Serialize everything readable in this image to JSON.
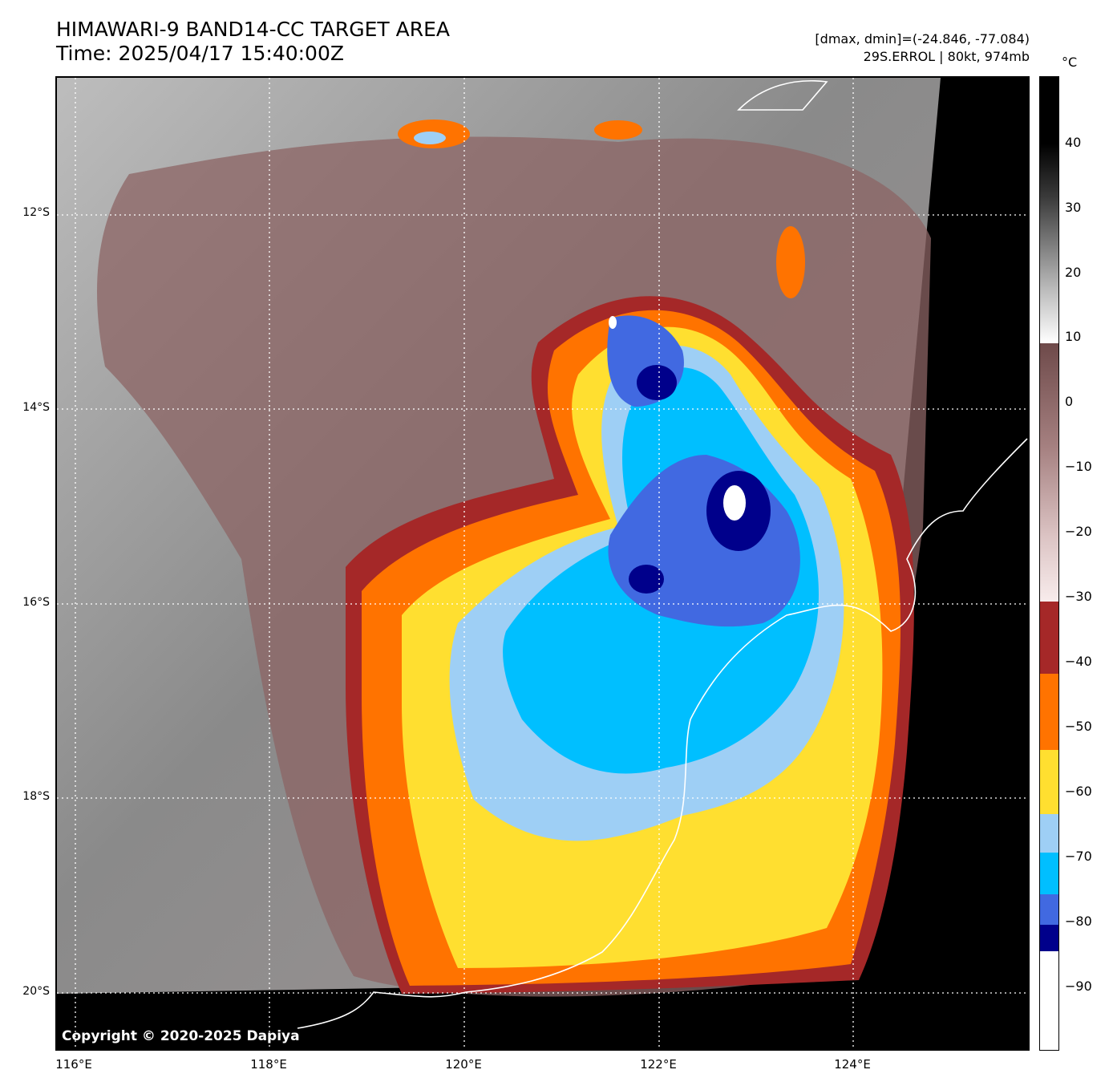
{
  "header": {
    "title_line1": "HIMAWARI-9 BAND14-CC TARGET AREA",
    "title_line2": "Time: 2025/04/17 15:40:00Z",
    "range_text": "[dmax, dmin]=(-24.846, -77.084)",
    "storm_text": "29S.ERROL | 80kt, 974mb"
  },
  "map": {
    "copyright": "Copyright © 2020-2025 Dapiya",
    "lat_labels": [
      "12°S",
      "14°S",
      "16°S",
      "18°S",
      "20°S"
    ],
    "lon_labels": [
      "116°E",
      "118°E",
      "120°E",
      "122°E",
      "124°E"
    ]
  },
  "colorbar": {
    "unit": "°C",
    "ticks": [
      "40",
      "30",
      "20",
      "10",
      "0",
      "−10",
      "−20",
      "−30",
      "−40",
      "−50",
      "−60",
      "−70",
      "−80",
      "−90"
    ],
    "colors": {
      "cold_white": "#ffffff",
      "navy": "#00008b",
      "royal_blue": "#4169e1",
      "deep_sky": "#00bfff",
      "light_blue": "#9ecff5",
      "yellow": "#ffdf30",
      "orange": "#ff7300",
      "dark_red": "#a52828",
      "pink": "#f3dcdc",
      "brown": "#7a5050",
      "background_black": "#000000"
    }
  }
}
